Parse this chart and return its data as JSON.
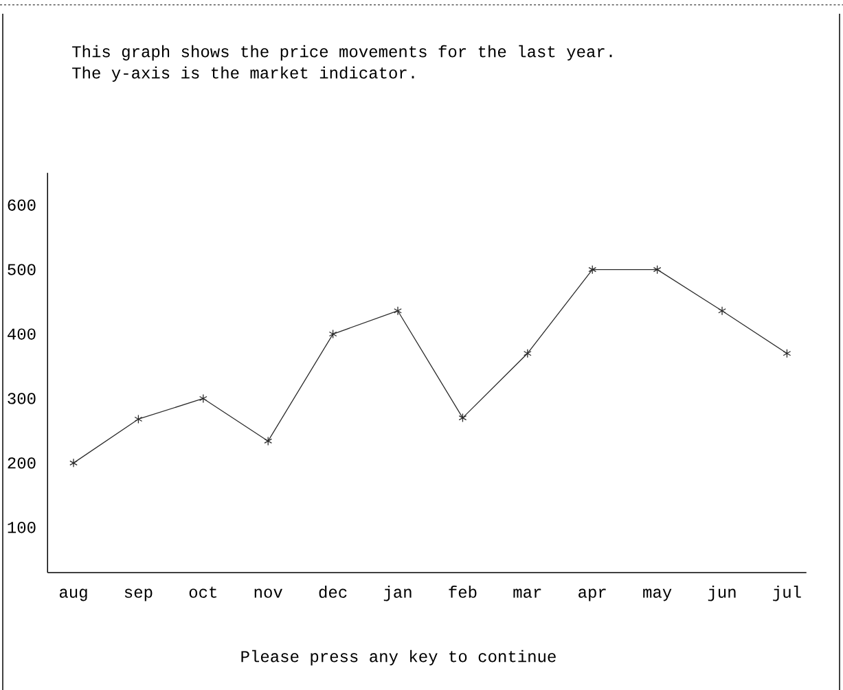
{
  "chart_data": {
    "type": "line",
    "title": "This graph shows the price movements for the last year.",
    "subtitle": "The y-axis is the market indicator.",
    "annotations": [
      "Please press any key to continue"
    ],
    "categories": [
      "aug",
      "sep",
      "oct",
      "nov",
      "dec",
      "jan",
      "feb",
      "mar",
      "apr",
      "may",
      "jun",
      "jul"
    ],
    "values": [
      200,
      268,
      300,
      234,
      400,
      436,
      270,
      370,
      500,
      500,
      436,
      370
    ],
    "color": "#2b2b2b",
    "ylim": [
      30,
      650
    ],
    "yticks": [
      100,
      200,
      300,
      400,
      500,
      600
    ],
    "grid": false,
    "marker": "cross",
    "line_style": "solid"
  }
}
